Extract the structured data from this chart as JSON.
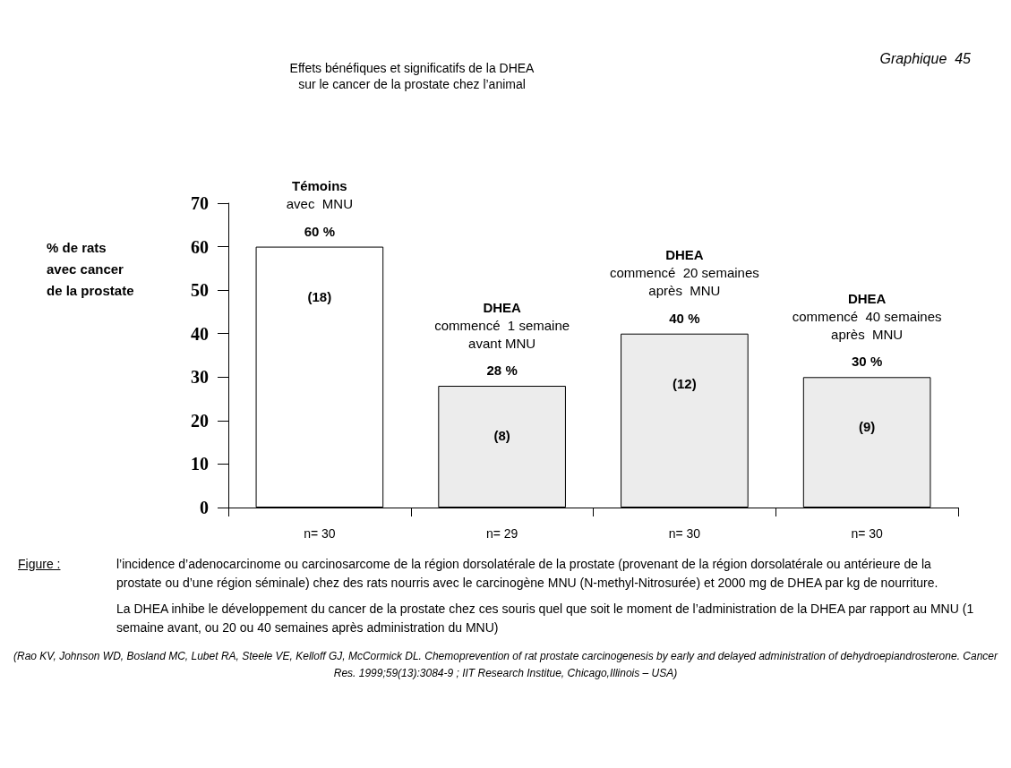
{
  "chart_data": {
    "type": "bar",
    "title": "Effets bénéfiques et significatifs de la DHEA\nsur le cancer de la prostate chez l’animal",
    "subtitle": "Graphique  45",
    "ylabel": "% de rats\navec cancer\nde la prostate",
    "categories": [
      "n= 30",
      "n= 29",
      "n= 30",
      "n= 30"
    ],
    "values": [
      60,
      28,
      40,
      30
    ],
    "colors": [
      "#ffffff",
      "#ececec",
      "#ececec",
      "#ececec"
    ],
    "value_labels": [
      "60 %",
      "28 %",
      "40 %",
      "30 %"
    ],
    "ylim": [
      0,
      70
    ],
    "yticks": [
      0,
      10,
      20,
      30,
      40,
      50,
      60,
      70
    ],
    "grid": false,
    "annotations": [
      "Témoins\navec  MNU",
      "DHEA\ncommencé  1 semaine\navant MNU",
      "DHEA\ncommencé  20 semaines\naprès  MNU",
      "DHEA\ncommencé  40 semaines\naprès  MNU",
      "(18)",
      "(8)",
      "(12)",
      "(9)",
      "Figure :",
      "l’incidence d’adenocarcinome ou carcinosarcome de la région dorsolatérale de la prostate (provenant de la région dorsolatérale ou antérieure de la prostate ou d’une région séminale) chez des rats nourris avec le carcinogène MNU (N-methyl-Nitrosurée) et 2000 mg de DHEA par kg de nourriture.",
      "La DHEA inhibe le développement du cancer de la prostate chez ces souris quel que soit le moment de l’administration de la DHEA par rapport au MNU (1 semaine avant, ou 20 ou 40 semaines après administration du MNU)",
      "(Rao KV, Johnson WD, Bosland MC, Lubet RA, Steele VE, Kelloff GJ, McCormick DL. Chemoprevention of rat prostate carcinogenesis by early and delayed administration of dehydroepiandrosterone. Cancer Res. 1999;59(13):3084-9 ; IIT Research Institue, Chicago,Illinois – USA)"
    ]
  }
}
